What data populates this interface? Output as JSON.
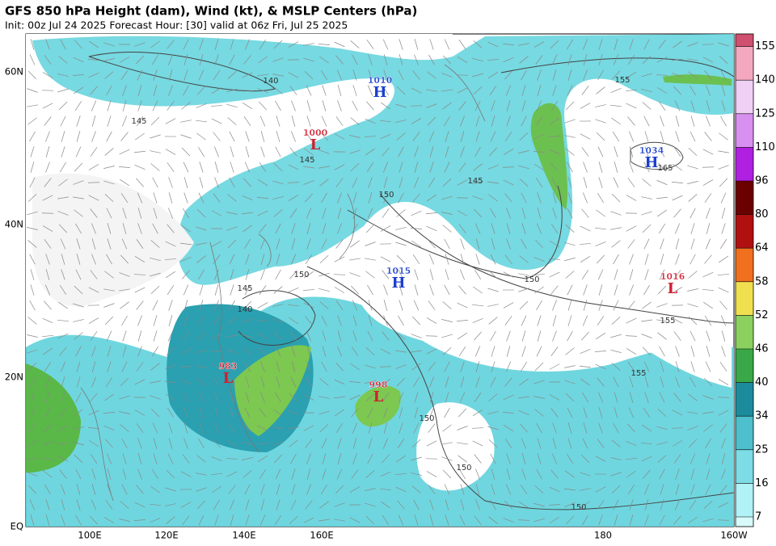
{
  "header": {
    "title": "GFS 850 hPa Height (dam), Wind (kt), & MSLP Centers (hPa)",
    "subtitle": "Init: 00z Jul 24 2025   Forecast Hour: [30]   valid at 06z Fri, Jul 25 2025"
  },
  "axes": {
    "latitudes": [
      "60N",
      "40N",
      "20N",
      "EQ"
    ],
    "longitudes": [
      "100E",
      "120E",
      "140E",
      "160E",
      "180",
      "160W"
    ]
  },
  "colorbar": {
    "labels": [
      "7",
      "16",
      "25",
      "34",
      "40",
      "46",
      "52",
      "58",
      "64",
      "80",
      "96",
      "110",
      "125",
      "140",
      "155"
    ]
  },
  "pressure_centers": [
    {
      "letter": "H",
      "value": "1010"
    },
    {
      "letter": "L",
      "value": "1000"
    },
    {
      "letter": "H",
      "value": "1034"
    },
    {
      "letter": "H",
      "value": "1015"
    },
    {
      "letter": "L",
      "value": "1016"
    },
    {
      "letter": "L",
      "value": "983"
    },
    {
      "letter": "L",
      "value": "998"
    }
  ],
  "contour_labels": [
    "140",
    "145",
    "145",
    "145",
    "150",
    "155",
    "165",
    "150",
    "145",
    "140",
    "150",
    "155",
    "155",
    "150",
    "150",
    "150"
  ]
}
